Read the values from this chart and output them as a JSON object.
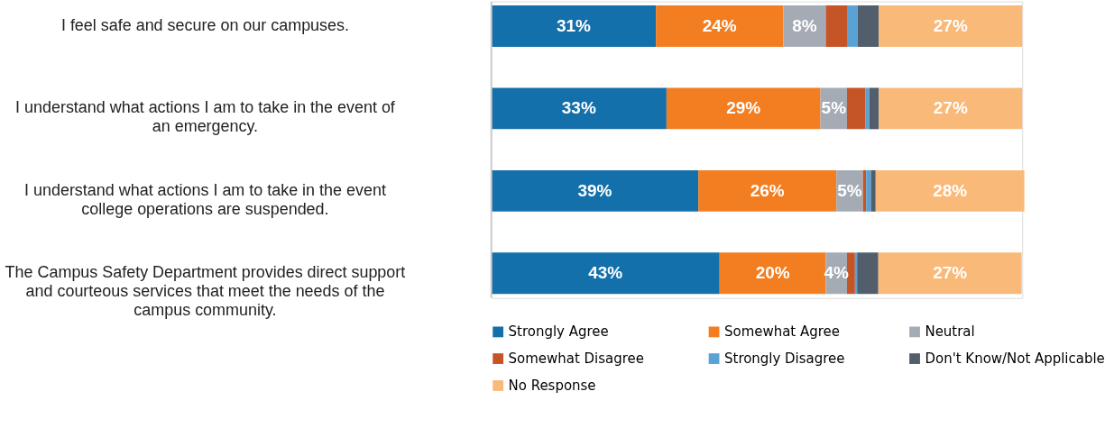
{
  "chart_data": {
    "type": "bar",
    "orientation": "horizontal",
    "stacked": true,
    "legend": "bottom",
    "grid": false,
    "tick_labels": "y",
    "xlim": [
      0,
      100
    ],
    "categories": [
      "I feel safe and secure on our campuses.",
      "I understand what actions I am to take in the event of an emergency.",
      "I understand what actions I am to take in the event college operations are suspended.",
      "The Campus Safety Department provides direct support and courteous services that meet the needs of the campus community."
    ],
    "series": [
      {
        "name": "Strongly Agree",
        "color": "#1470ab",
        "values": [
          31,
          33,
          39,
          43
        ],
        "value_labels": [
          "31%",
          "33%",
          "39%",
          "43%"
        ]
      },
      {
        "name": "Somewhat Agree",
        "color": "#f37e21",
        "values": [
          24,
          29,
          26,
          20
        ],
        "value_labels": [
          "24%",
          "29%",
          "26%",
          "20%"
        ]
      },
      {
        "name": "Neutral",
        "color": "#a5abb5",
        "values": [
          8,
          5,
          5,
          4
        ],
        "value_labels": [
          "8%",
          "5%",
          "5%",
          "4%"
        ]
      },
      {
        "name": "Somewhat Disagree",
        "color": "#c55427",
        "values": [
          4,
          3.5,
          0.6,
          1.5
        ],
        "value_labels": [
          null,
          null,
          null,
          null
        ]
      },
      {
        "name": "Strongly Disagree",
        "color": "#5aa2d4",
        "values": [
          2,
          0.7,
          0.9,
          0.4
        ],
        "value_labels": [
          null,
          null,
          null,
          null
        ]
      },
      {
        "name": "Don't Know/Not Applicable",
        "color": "#525e6b",
        "values": [
          4,
          1.8,
          0.9,
          4
        ],
        "value_labels": [
          null,
          null,
          null,
          null
        ]
      },
      {
        "name": "No Response",
        "color": "#f9b978",
        "values": [
          27,
          27,
          28,
          27
        ],
        "value_labels": [
          "27%",
          "27%",
          "28%",
          "27%"
        ]
      }
    ]
  }
}
